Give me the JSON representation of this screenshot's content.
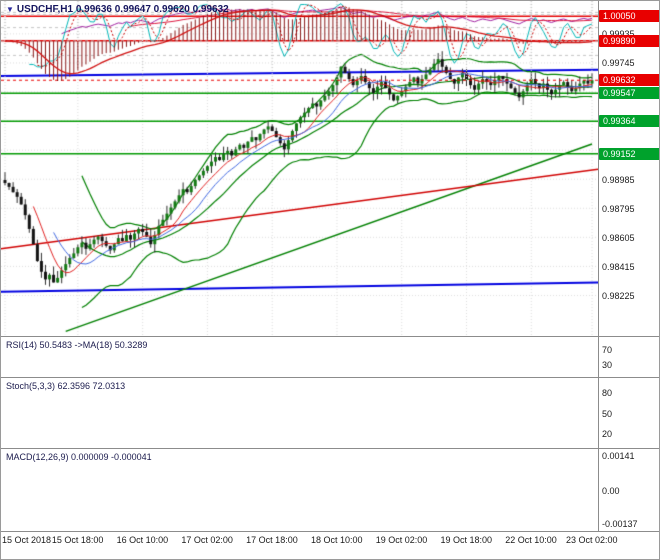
{
  "header": {
    "symbol_dropdown_icon": "▼",
    "title": "USDCHF,H1 0.99636 0.99647 0.99620 0.99632"
  },
  "panels": {
    "rsi": {
      "label": "RSI(14) 50.5483 ->MA(18) 50.3289",
      "levels": [
        70,
        30
      ],
      "axis": [
        {
          "text": "70",
          "value": 70
        },
        {
          "text": "30",
          "value": 30
        }
      ],
      "range": [
        0,
        100
      ]
    },
    "stoch": {
      "label": "Stoch(5,3,3) 62.3596 72.0313",
      "levels": [
        80,
        20
      ],
      "axis": [
        {
          "text": "80",
          "value": 80
        },
        {
          "text": "50",
          "value": 50
        },
        {
          "text": "20",
          "value": 20
        }
      ],
      "range": [
        0,
        100
      ]
    },
    "macd": {
      "label": "MACD(12,26,9) 0.000009 -0.000041",
      "axis": [
        {
          "text": "0.00141",
          "value": 0.00141
        },
        {
          "text": "0.00",
          "value": 0
        },
        {
          "text": "-0.00137",
          "value": -0.00137
        }
      ],
      "range": [
        -0.00165,
        0.00165
      ]
    }
  },
  "price_axis": {
    "plain_labels": [
      {
        "text": "0.99935",
        "value": 0.99935
      },
      {
        "text": "0.99745",
        "value": 0.99745
      },
      {
        "text": "0.99555",
        "value": 0.99555
      },
      {
        "text": "0.99365",
        "value": 0.99365
      },
      {
        "text": "0.99175",
        "value": 0.99175
      },
      {
        "text": "0.98985",
        "value": 0.98985
      },
      {
        "text": "0.98795",
        "value": 0.98795
      },
      {
        "text": "0.98605",
        "value": 0.98605
      },
      {
        "text": "0.98415",
        "value": 0.98415
      },
      {
        "text": "0.98225",
        "value": 0.98225
      }
    ],
    "badges": [
      {
        "text": "1.00050",
        "value": 1.0005,
        "color": "#e80000"
      },
      {
        "text": "0.99890",
        "value": 0.9989,
        "color": "#e80000"
      },
      {
        "text": "0.99632",
        "value": 0.99632,
        "color": "#e80000"
      },
      {
        "text": "0.99547",
        "value": 0.99547,
        "color": "#00a22c"
      },
      {
        "text": "0.99364",
        "value": 0.99364,
        "color": "#00a22c"
      },
      {
        "text": "0.99152",
        "value": 0.99152,
        "color": "#00a22c"
      }
    ]
  },
  "time_axis": {
    "labels": [
      {
        "text": "15 Oct 2018",
        "hour": 0
      },
      {
        "text": "15 Oct 18:00",
        "hour": 18
      },
      {
        "text": "16 Oct 10:00",
        "hour": 34
      },
      {
        "text": "17 Oct 02:00",
        "hour": 50
      },
      {
        "text": "17 Oct 18:00",
        "hour": 66
      },
      {
        "text": "18 Oct 10:00",
        "hour": 82
      },
      {
        "text": "19 Oct 02:00",
        "hour": 98
      },
      {
        "text": "19 Oct 18:00",
        "hour": 114
      },
      {
        "text": "22 Oct 10:00",
        "hour": 130
      },
      {
        "text": "23 Oct 02:00",
        "hour": 145
      }
    ]
  },
  "colors": {
    "grid": "#dcdcdc",
    "level_dash": "#c4c4c4",
    "candle_up": "#157a15",
    "candle_down": "#141414",
    "wick": "#2e2e2e",
    "bollinger": "#008000",
    "ma_fast_red": "#e02020",
    "ma_fast_blue": "#4169e1",
    "ma_long_red": "#d00000",
    "resistance": "#e60000",
    "support": "#009900",
    "channel_blue": "#0000e0",
    "trend_green": "#008000",
    "rsi_line": "#a020a0",
    "rsi_ma": "#dc143c",
    "stoch_k": "#00b7b7",
    "stoch_d": "#cc0000",
    "macd_hist": "#8b1a1a",
    "macd_signal": "#d01010",
    "current_price_line": "#e80000"
  },
  "chart_data": {
    "type": "candlestick-with-indicators",
    "symbol": "USDCHF",
    "timeframe": "H1",
    "quote": {
      "open": 0.99636,
      "high": 0.99647,
      "low": 0.9962,
      "close": 0.99632
    },
    "price_range": [
      0.9796,
      1.0015
    ],
    "candles": {
      "start": "15 Oct 2018 00:00",
      "interval_hours": 1,
      "first_open": 0.9898,
      "closes": [
        0.9896,
        0.98935,
        0.989,
        0.9887,
        0.9882,
        0.9875,
        0.9866,
        0.9856,
        0.9845,
        0.9838,
        0.9833,
        0.9836,
        0.9831,
        0.9834,
        0.9839,
        0.9843,
        0.9847,
        0.985,
        0.9854,
        0.9857,
        0.9853,
        0.9856,
        0.9859,
        0.9861,
        0.9858,
        0.9855,
        0.9852,
        0.9856,
        0.986,
        0.9858,
        0.9862,
        0.9859,
        0.9863,
        0.9866,
        0.9864,
        0.9861,
        0.9856,
        0.9862,
        0.9868,
        0.9872,
        0.9876,
        0.988,
        0.9884,
        0.9888,
        0.9892,
        0.989,
        0.9894,
        0.9898,
        0.9901,
        0.9904,
        0.9907,
        0.991,
        0.9913,
        0.9911,
        0.9915,
        0.9917,
        0.9914,
        0.9918,
        0.9921,
        0.9919,
        0.9923,
        0.9926,
        0.9924,
        0.9928,
        0.9931,
        0.9933,
        0.993,
        0.9926,
        0.9922,
        0.9918,
        0.9924,
        0.993,
        0.9935,
        0.9939,
        0.9942,
        0.9945,
        0.9948,
        0.9946,
        0.995,
        0.9953,
        0.9956,
        0.996,
        0.9965,
        0.9972,
        0.9968,
        0.9964,
        0.996,
        0.9963,
        0.9966,
        0.9962,
        0.9958,
        0.9955,
        0.9959,
        0.9962,
        0.9958,
        0.9954,
        0.995,
        0.9953,
        0.9956,
        0.9959,
        0.9962,
        0.9965,
        0.9961,
        0.9964,
        0.9967,
        0.997,
        0.9974,
        0.9977,
        0.9972,
        0.9968,
        0.9964,
        0.9961,
        0.9965,
        0.9968,
        0.9964,
        0.996,
        0.9957,
        0.9961,
        0.9964,
        0.9962,
        0.996,
        0.9963,
        0.9966,
        0.9964,
        0.9961,
        0.9958,
        0.9955,
        0.9952,
        0.9956,
        0.996,
        0.9964,
        0.9961,
        0.9958,
        0.9961,
        0.9957,
        0.9954,
        0.9957,
        0.996,
        0.9962,
        0.9959,
        0.9956,
        0.9958,
        0.9961,
        0.9963,
        0.9961,
        0.99632
      ]
    },
    "levels": {
      "resistance": [
        1.0005,
        0.9989
      ],
      "support": [
        0.99547,
        0.99364,
        0.99152
      ]
    },
    "lines": {
      "channel_upper": {
        "p_left": 0.9966,
        "p_right": 0.997
      },
      "channel_lower": {
        "p_left": 0.9825,
        "p_right": 0.9831
      },
      "trend_green": {
        "i1": 15,
        "p1": 0.9799,
        "i2": 145,
        "p2": 0.99215
      },
      "ma_long_red": {
        "p_left": 0.9853,
        "p_right": 0.9905
      }
    },
    "indicators": {
      "bollinger": {
        "period": 20,
        "deviation": 2
      },
      "ma_fast": [
        {
          "period": 8,
          "color_key": "ma_fast_red"
        },
        {
          "period": 13,
          "color_key": "ma_fast_blue"
        }
      ],
      "rsi": {
        "period": 14,
        "ma_period": 18,
        "value": 50.5483,
        "ma_value": 50.3289
      },
      "stoch": {
        "params": "5,3,3",
        "k_value": 62.3596,
        "d_value": 72.0313
      },
      "macd": {
        "params": "12,26,9",
        "value": 9e-06,
        "signal_value": -4.1e-05
      }
    }
  }
}
